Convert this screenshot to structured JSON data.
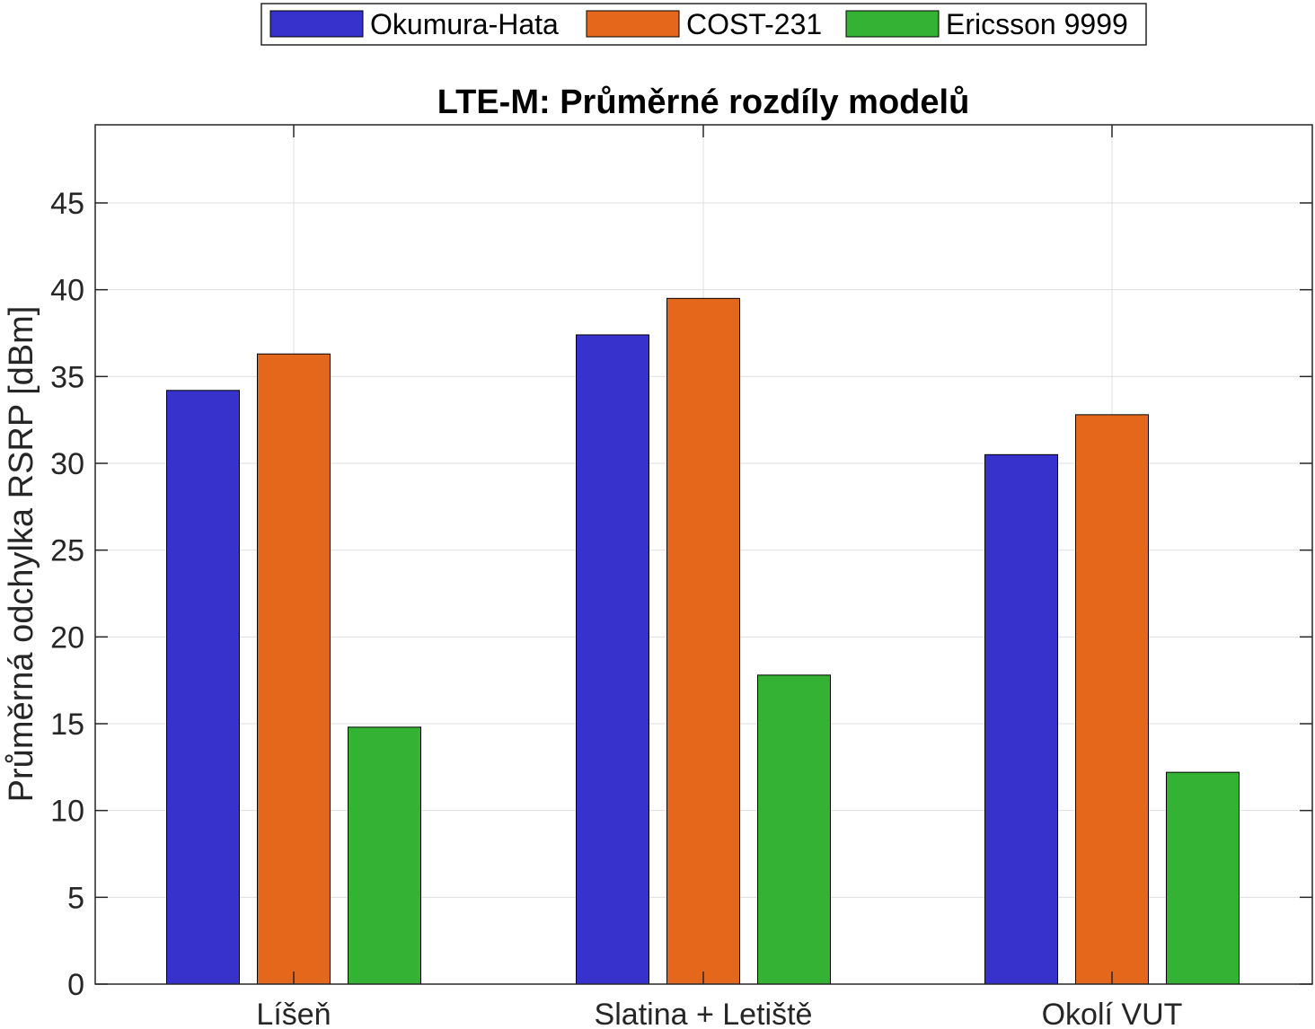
{
  "chart_data": {
    "type": "bar",
    "title": "LTE-M: Průměrné rozdíly modelů",
    "xlabel": "",
    "ylabel": "Průměrná odchylka RSRP [dBm]",
    "categories": [
      "Líšeň",
      "Slatina + Letiště",
      "Okolí VUT"
    ],
    "series": [
      {
        "name": "Okumura-Hata",
        "values": [
          34.2,
          37.4,
          30.5
        ],
        "color": "#3632CB"
      },
      {
        "name": "COST-231",
        "values": [
          36.3,
          39.5,
          32.8
        ],
        "color": "#E5671C"
      },
      {
        "name": "Ericsson 9999",
        "values": [
          14.8,
          17.8,
          12.2
        ],
        "color": "#33B234"
      }
    ],
    "ylim": [
      0,
      49.5
    ],
    "yticks": [
      0,
      5,
      10,
      15,
      20,
      25,
      30,
      35,
      40,
      45
    ],
    "grid": true,
    "legend_position": "top-center"
  }
}
